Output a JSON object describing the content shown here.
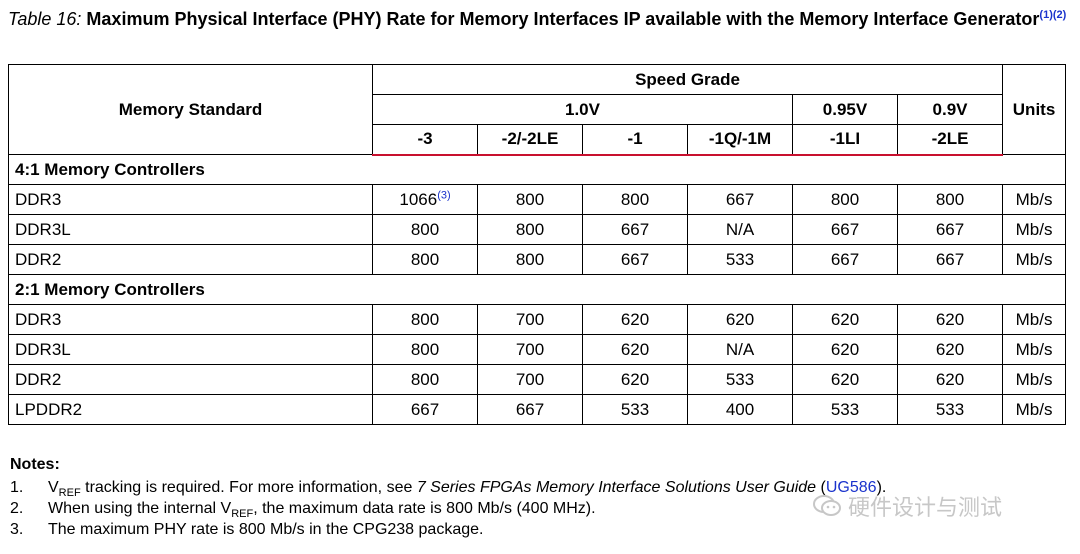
{
  "title": {
    "number": "Table 16:",
    "text": "Maximum Physical Interface (PHY) Rate for Memory Interfaces IP available with the Memory Interface Generator",
    "refs": "(1)(2)"
  },
  "table": {
    "header": {
      "memory_standard": "Memory Standard",
      "speed_grade": "Speed Grade",
      "units": "Units",
      "voltages": [
        "1.0V",
        "0.95V",
        "0.9V"
      ],
      "grades": [
        "-3",
        "-2/-2LE",
        "-1",
        "-1Q/-1M",
        "-1LI",
        "-2LE"
      ]
    },
    "sections": [
      {
        "title": "4:1 Memory Controllers",
        "rows": [
          {
            "std": "DDR3",
            "vals": [
              "1066",
              "800",
              "800",
              "667",
              "800",
              "800"
            ],
            "unit": "Mb/s",
            "note": "(3)"
          },
          {
            "std": "DDR3L",
            "vals": [
              "800",
              "800",
              "667",
              "N/A",
              "667",
              "667"
            ],
            "unit": "Mb/s"
          },
          {
            "std": "DDR2",
            "vals": [
              "800",
              "800",
              "667",
              "533",
              "667",
              "667"
            ],
            "unit": "Mb/s"
          }
        ]
      },
      {
        "title": "2:1 Memory Controllers",
        "rows": [
          {
            "std": "DDR3",
            "vals": [
              "800",
              "700",
              "620",
              "620",
              "620",
              "620"
            ],
            "unit": "Mb/s"
          },
          {
            "std": "DDR3L",
            "vals": [
              "800",
              "700",
              "620",
              "N/A",
              "620",
              "620"
            ],
            "unit": "Mb/s"
          },
          {
            "std": "DDR2",
            "vals": [
              "800",
              "700",
              "620",
              "533",
              "620",
              "620"
            ],
            "unit": "Mb/s"
          },
          {
            "std": "LPDDR2",
            "vals": [
              "667",
              "667",
              "533",
              "400",
              "533",
              "533"
            ],
            "unit": "Mb/s"
          }
        ]
      }
    ]
  },
  "notes": {
    "heading": "Notes:",
    "n1": {
      "num": "1.",
      "v": "V",
      "sub": "REF",
      "text": " tracking is required. For more information, see ",
      "guide": "7 Series FPGAs Memory Interface Solutions User Guide",
      "open": " (",
      "link": "UG586",
      "close": ")."
    },
    "n2": {
      "num": "2.",
      "pre": "When using the internal V",
      "sub": "REF",
      "post": ", the maximum data rate is 800 Mb/s (400 MHz)."
    },
    "n3": {
      "num": "3.",
      "text": "The maximum PHY rate is 800 Mb/s in the CPG238 package."
    }
  },
  "watermark": {
    "text": "硬件设计与测试",
    "icon": "wechat-icon"
  }
}
